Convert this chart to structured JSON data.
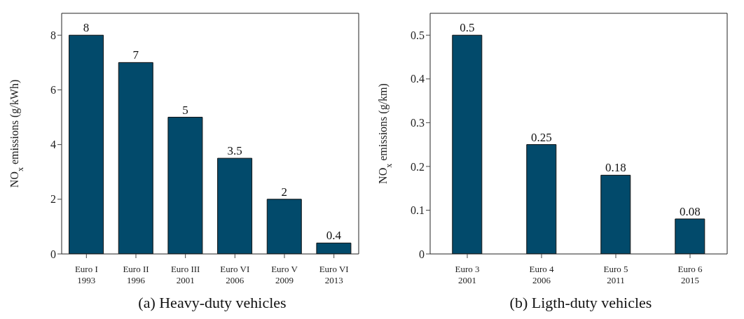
{
  "chart_data": [
    {
      "type": "bar",
      "title": "(a) Heavy-duty vehicles",
      "ylabel": "NO$_{x}$ emissions (g/kWh)",
      "categories": [
        "Euro I\n1993",
        "Euro II\n1996",
        "Euro III\n2001",
        "Euro VI\n2006",
        "Euro V\n2009",
        "Euro VI\n2013"
      ],
      "values": [
        8,
        7,
        5,
        3.5,
        2,
        0.4
      ],
      "color": "#024a6b",
      "ylim": [
        0,
        8.8
      ],
      "yticks": [
        0,
        2,
        4,
        6,
        8
      ],
      "data_labels": true,
      "grid": false,
      "legend": false
    },
    {
      "type": "bar",
      "title": "(b) Ligth-duty vehicles",
      "ylabel": "NO$_{x}$ emissions (g/km)",
      "categories": [
        "Euro 3\n2001",
        "Euro 4\n2006",
        "Euro 5\n2011",
        "Euro 6\n2015"
      ],
      "values": [
        0.5,
        0.25,
        0.18,
        0.08
      ],
      "color": "#024a6b",
      "ylim": [
        0,
        0.55
      ],
      "yticks": [
        0,
        0.1,
        0.2,
        0.3,
        0.4,
        0.5
      ],
      "data_labels": true,
      "grid": false,
      "legend": false
    }
  ]
}
